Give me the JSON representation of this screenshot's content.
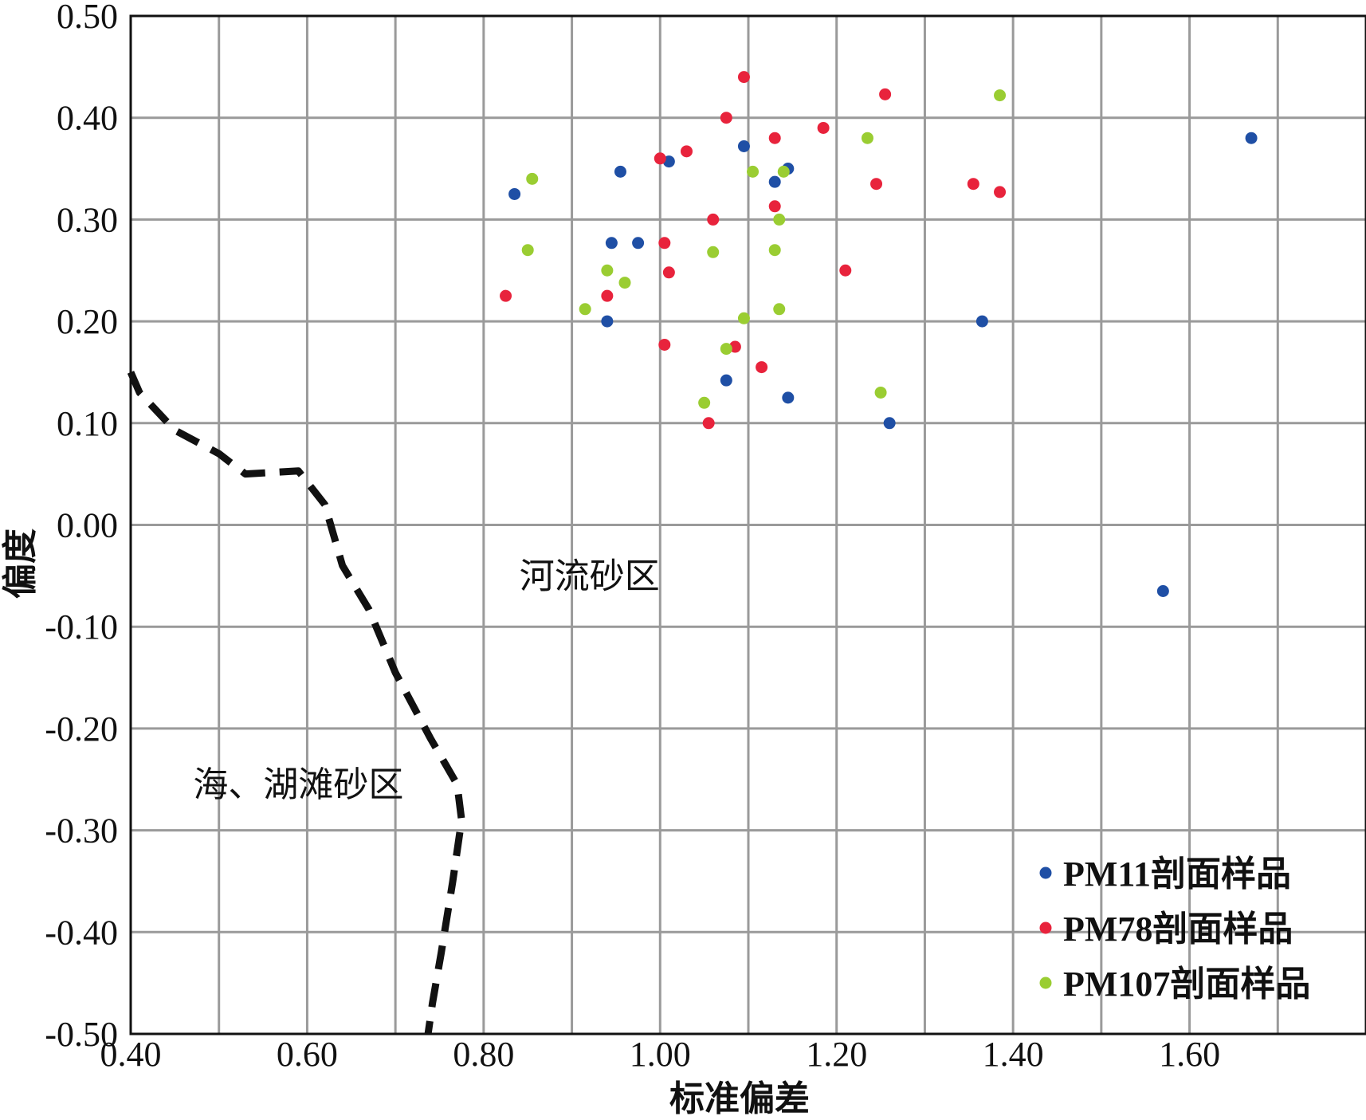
{
  "chart_data": {
    "type": "scatter",
    "xlabel": "标准偏差",
    "ylabel": "偏度",
    "xlim": [
      0.4,
      1.8
    ],
    "ylim": [
      -0.5,
      0.5
    ],
    "x_ticks": [
      "0.40",
      "0.60",
      "0.80",
      "1.00",
      "1.20",
      "1.40",
      "1.60"
    ],
    "y_ticks": [
      "0.50",
      "0.40",
      "0.30",
      "0.20",
      "0.10",
      "0.00",
      "-0.10",
      "-0.20",
      "-0.30",
      "-0.40",
      "-0.50"
    ],
    "grid": true,
    "legend_position": "bottom-right",
    "series": [
      {
        "name": "PM11剖面样品",
        "color": "#1f4fa5",
        "points": [
          [
            0.835,
            0.325
          ],
          [
            0.955,
            0.347
          ],
          [
            1.01,
            0.357
          ],
          [
            1.095,
            0.372
          ],
          [
            1.13,
            0.337
          ],
          [
            1.145,
            0.35
          ],
          [
            0.945,
            0.277
          ],
          [
            0.975,
            0.277
          ],
          [
            0.94,
            0.2
          ],
          [
            1.075,
            0.142
          ],
          [
            1.145,
            0.125
          ],
          [
            1.26,
            0.1
          ],
          [
            1.365,
            0.2
          ],
          [
            1.67,
            0.38
          ],
          [
            1.57,
            -0.065
          ]
        ]
      },
      {
        "name": "PM78剖面样品",
        "color": "#e8233c",
        "points": [
          [
            0.825,
            0.225
          ],
          [
            1.0,
            0.36
          ],
          [
            1.03,
            0.367
          ],
          [
            1.075,
            0.4
          ],
          [
            1.095,
            0.44
          ],
          [
            1.13,
            0.38
          ],
          [
            1.185,
            0.39
          ],
          [
            1.255,
            0.423
          ],
          [
            1.245,
            0.335
          ],
          [
            1.355,
            0.335
          ],
          [
            1.385,
            0.327
          ],
          [
            1.13,
            0.313
          ],
          [
            1.06,
            0.3
          ],
          [
            1.005,
            0.277
          ],
          [
            1.01,
            0.248
          ],
          [
            0.94,
            0.225
          ],
          [
            1.005,
            0.177
          ],
          [
            1.085,
            0.175
          ],
          [
            1.115,
            0.155
          ],
          [
            1.055,
            0.1
          ],
          [
            1.21,
            0.25
          ]
        ]
      },
      {
        "name": "PM107剖面样品",
        "color": "#9acd32",
        "points": [
          [
            0.855,
            0.34
          ],
          [
            0.85,
            0.27
          ],
          [
            0.915,
            0.212
          ],
          [
            0.94,
            0.25
          ],
          [
            0.96,
            0.238
          ],
          [
            1.06,
            0.268
          ],
          [
            1.105,
            0.347
          ],
          [
            1.14,
            0.347
          ],
          [
            1.135,
            0.3
          ],
          [
            1.13,
            0.27
          ],
          [
            1.135,
            0.212
          ],
          [
            1.095,
            0.203
          ],
          [
            1.075,
            0.173
          ],
          [
            1.05,
            0.12
          ],
          [
            1.235,
            0.38
          ],
          [
            1.25,
            0.13
          ],
          [
            1.385,
            0.422
          ]
        ]
      }
    ],
    "regions": [
      {
        "label": "河流砂区",
        "x": 0.92,
        "y": -0.05
      },
      {
        "label": "海、湖滩砂区",
        "x": 0.59,
        "y": -0.255
      }
    ],
    "boundary": [
      [
        0.4,
        0.15
      ],
      [
        0.41,
        0.13
      ],
      [
        0.45,
        0.093
      ],
      [
        0.5,
        0.07
      ],
      [
        0.53,
        0.05
      ],
      [
        0.59,
        0.053
      ],
      [
        0.62,
        0.02
      ],
      [
        0.64,
        -0.04
      ],
      [
        0.67,
        -0.083
      ],
      [
        0.7,
        -0.145
      ],
      [
        0.74,
        -0.21
      ],
      [
        0.77,
        -0.255
      ],
      [
        0.775,
        -0.29
      ],
      [
        0.765,
        -0.35
      ],
      [
        0.752,
        -0.42
      ],
      [
        0.742,
        -0.47
      ],
      [
        0.737,
        -0.5
      ]
    ]
  }
}
